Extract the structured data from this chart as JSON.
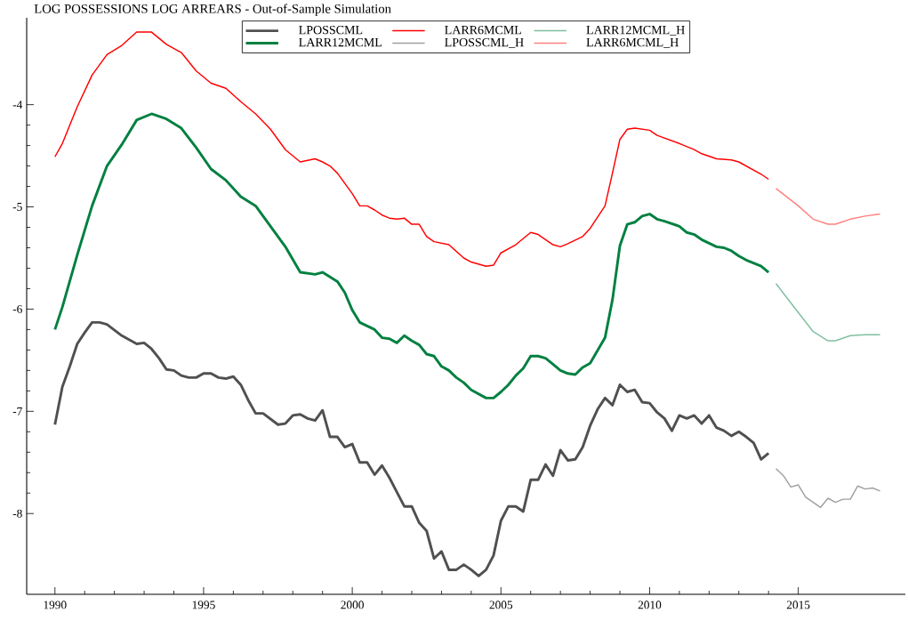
{
  "chart_data": {
    "type": "line",
    "title": "LOG POSSESSIONS LOG ARREARS - Out-of-Sample Simulation",
    "xlim": [
      1989.05,
      2018.6
    ],
    "ylim": [
      -8.79,
      -3.15
    ],
    "xticks": [
      1990,
      1995,
      2000,
      2005,
      2010,
      2015
    ],
    "yticks": [
      -8,
      -7,
      -6,
      -5,
      -4
    ],
    "grid": false,
    "legend": "top",
    "marker": "none",
    "line_style": "solid",
    "series": [
      {
        "name": "LPOSSCML",
        "color": "#505050",
        "x": [
          1990,
          1990.25,
          1990.5,
          1990.75,
          1991,
          1991.25,
          1991.5,
          1991.75,
          1992.25,
          1992.75,
          1993,
          1993.25,
          1993.5,
          1993.75,
          1994,
          1994.25,
          1994.5,
          1994.75,
          1995,
          1995.25,
          1995.5,
          1995.75,
          1996,
          1996.25,
          1996.5,
          1996.75,
          1997,
          1997.5,
          1997.75,
          1998,
          1998.25,
          1998.5,
          1998.75,
          1999,
          1999.25,
          1999.5,
          1999.75,
          2000,
          2000.25,
          2000.5,
          2000.75,
          2001,
          2001.25,
          2001.5,
          2001.75,
          2002,
          2002.25,
          2002.5,
          2002.75,
          2003,
          2003.25,
          2003.5,
          2003.75,
          2004,
          2004.25,
          2004.5,
          2004.75,
          2005,
          2005.25,
          2005.5,
          2005.75,
          2006,
          2006.25,
          2006.5,
          2006.75,
          2007,
          2007.25,
          2007.5,
          2007.75,
          2008,
          2008.25,
          2008.5,
          2008.75,
          2009,
          2009.25,
          2009.5,
          2009.75,
          2010,
          2010.25,
          2010.5,
          2010.75,
          2011,
          2011.25,
          2011.5,
          2011.75,
          2012,
          2012.25,
          2012.5,
          2012.75,
          2013,
          2013.25,
          2013.5,
          2013.75,
          2014
        ],
        "values": [
          -7.13,
          -6.76,
          -6.56,
          -6.34,
          -6.23,
          -6.13,
          -6.13,
          -6.15,
          -6.26,
          -6.34,
          -6.33,
          -6.39,
          -6.48,
          -6.59,
          -6.6,
          -6.65,
          -6.67,
          -6.67,
          -6.63,
          -6.63,
          -6.67,
          -6.68,
          -6.66,
          -6.74,
          -6.89,
          -7.02,
          -7.02,
          -7.13,
          -7.12,
          -7.04,
          -7.03,
          -7.07,
          -7.09,
          -6.99,
          -7.25,
          -7.25,
          -7.35,
          -7.32,
          -7.5,
          -7.5,
          -7.62,
          -7.53,
          -7.65,
          -7.79,
          -7.93,
          -7.93,
          -8.09,
          -8.17,
          -8.44,
          -8.37,
          -8.55,
          -8.55,
          -8.5,
          -8.55,
          -8.61,
          -8.55,
          -8.41,
          -8.07,
          -7.93,
          -7.93,
          -7.98,
          -7.67,
          -7.67,
          -7.52,
          -7.63,
          -7.38,
          -7.48,
          -7.47,
          -7.35,
          -7.14,
          -6.98,
          -6.87,
          -6.94,
          -6.74,
          -6.81,
          -6.79,
          -6.91,
          -6.92,
          -7.01,
          -7.07,
          -7.19,
          -7.04,
          -7.07,
          -7.04,
          -7.12,
          -7.04,
          -7.16,
          -7.19,
          -7.24,
          -7.2,
          -7.25,
          -7.31,
          -7.47,
          -7.41
        ]
      },
      {
        "name": "LARR12MCML",
        "color": "#008040",
        "x": [
          1990,
          1990.25,
          1990.75,
          1991.25,
          1991.75,
          1992.25,
          1992.75,
          1993.25,
          1993.75,
          1994.25,
          1994.75,
          1995.25,
          1995.75,
          1996.25,
          1996.75,
          1997.25,
          1997.75,
          1998.25,
          1998.75,
          1999,
          1999.5,
          1999.75,
          2000,
          2000.25,
          2000.75,
          2001,
          2001.25,
          2001.5,
          2001.75,
          2002,
          2002.25,
          2002.5,
          2002.75,
          2003,
          2003.25,
          2003.5,
          2003.75,
          2004,
          2004.5,
          2004.75,
          2005,
          2005.25,
          2005.5,
          2005.75,
          2006,
          2006.25,
          2006.5,
          2006.75,
          2007,
          2007.25,
          2007.5,
          2007.75,
          2008,
          2008.5,
          2008.75,
          2009,
          2009.25,
          2009.5,
          2009.75,
          2010,
          2010.25,
          2010.5,
          2011,
          2011.25,
          2011.5,
          2011.75,
          2012.25,
          2012.5,
          2012.75,
          2013,
          2013.25,
          2013.75,
          2014
        ],
        "values": [
          -6.2,
          -5.98,
          -5.47,
          -4.99,
          -4.6,
          -4.39,
          -4.15,
          -4.09,
          -4.14,
          -4.23,
          -4.42,
          -4.63,
          -4.74,
          -4.9,
          -4.99,
          -5.19,
          -5.39,
          -5.64,
          -5.66,
          -5.64,
          -5.73,
          -5.84,
          -6.01,
          -6.13,
          -6.2,
          -6.28,
          -6.29,
          -6.33,
          -6.26,
          -6.31,
          -6.35,
          -6.44,
          -6.46,
          -6.56,
          -6.6,
          -6.67,
          -6.72,
          -6.79,
          -6.87,
          -6.87,
          -6.81,
          -6.74,
          -6.65,
          -6.58,
          -6.46,
          -6.46,
          -6.48,
          -6.54,
          -6.6,
          -6.63,
          -6.64,
          -6.57,
          -6.53,
          -6.28,
          -5.91,
          -5.38,
          -5.17,
          -5.15,
          -5.09,
          -5.07,
          -5.12,
          -5.14,
          -5.19,
          -5.25,
          -5.27,
          -5.32,
          -5.39,
          -5.4,
          -5.43,
          -5.48,
          -5.52,
          -5.58,
          -5.64
        ]
      },
      {
        "name": "LARR6MCML",
        "color": "#ff0000",
        "x": [
          1990,
          1990.25,
          1990.75,
          1991.25,
          1991.75,
          1992.25,
          1992.75,
          1993.25,
          1993.75,
          1994.25,
          1994.75,
          1995.25,
          1995.75,
          1996.25,
          1996.75,
          1997.25,
          1997.75,
          1998.25,
          1998.75,
          1999,
          1999.25,
          1999.5,
          2000,
          2000.25,
          2000.5,
          2000.75,
          2001,
          2001.25,
          2001.5,
          2001.75,
          2002,
          2002.25,
          2002.5,
          2002.75,
          2003.25,
          2003.75,
          2004,
          2004.5,
          2004.75,
          2005,
          2005.5,
          2006,
          2006.25,
          2006.75,
          2007,
          2007.25,
          2007.75,
          2008,
          2008.5,
          2008.75,
          2009,
          2009.25,
          2009.5,
          2010,
          2010.25,
          2011,
          2011.5,
          2011.75,
          2012.25,
          2012.75,
          2013,
          2013.75,
          2014
        ],
        "values": [
          -4.51,
          -4.38,
          -4.02,
          -3.71,
          -3.51,
          -3.42,
          -3.29,
          -3.29,
          -3.41,
          -3.49,
          -3.67,
          -3.79,
          -3.84,
          -3.97,
          -4.09,
          -4.24,
          -4.44,
          -4.56,
          -4.53,
          -4.56,
          -4.6,
          -4.67,
          -4.87,
          -4.99,
          -4.99,
          -5.03,
          -5.08,
          -5.11,
          -5.12,
          -5.11,
          -5.17,
          -5.17,
          -5.29,
          -5.34,
          -5.37,
          -5.5,
          -5.54,
          -5.58,
          -5.57,
          -5.45,
          -5.37,
          -5.25,
          -5.27,
          -5.37,
          -5.39,
          -5.36,
          -5.29,
          -5.21,
          -4.99,
          -4.67,
          -4.34,
          -4.24,
          -4.23,
          -4.25,
          -4.3,
          -4.38,
          -4.44,
          -4.48,
          -4.53,
          -4.54,
          -4.56,
          -4.68,
          -4.73
        ]
      },
      {
        "name": "LPOSSCML_H",
        "color": "#a0a0a0",
        "x": [
          2014.25,
          2014.5,
          2014.75,
          2015,
          2015.25,
          2015.75,
          2016,
          2016.25,
          2016.5,
          2016.75,
          2017,
          2017.25,
          2017.5,
          2017.75
        ],
        "values": [
          -7.56,
          -7.63,
          -7.74,
          -7.72,
          -7.84,
          -7.94,
          -7.85,
          -7.89,
          -7.86,
          -7.86,
          -7.73,
          -7.76,
          -7.75,
          -7.78
        ]
      },
      {
        "name": "LARR12MCML_H",
        "color": "#80c0a0",
        "x": [
          2014.25,
          2014.75,
          2015.5,
          2016,
          2016.25,
          2016.75,
          2017.25,
          2017.75
        ],
        "values": [
          -5.75,
          -5.94,
          -6.22,
          -6.31,
          -6.31,
          -6.26,
          -6.25,
          -6.25
        ]
      },
      {
        "name": "LARR6MCML_H",
        "color": "#ff8080",
        "x": [
          2014.25,
          2015,
          2015.5,
          2016,
          2016.25,
          2016.75,
          2017.25,
          2017.75
        ],
        "values": [
          -4.82,
          -4.99,
          -5.12,
          -5.17,
          -5.17,
          -5.12,
          -5.09,
          -5.07
        ]
      }
    ]
  }
}
